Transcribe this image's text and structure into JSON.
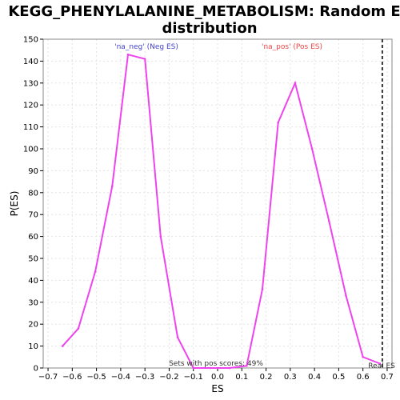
{
  "chart_data": {
    "type": "line",
    "title_lines": [
      "KEGG_PHENYLALANINE_METABOLISM: Random ES",
      "distribution"
    ],
    "xlabel": "ES",
    "ylabel": "P(ES)",
    "xlim": [
      -0.72,
      0.72
    ],
    "ylim": [
      0,
      150
    ],
    "xticks": [
      -0.7,
      -0.6,
      -0.5,
      -0.4,
      -0.3,
      -0.2,
      -0.1,
      0.0,
      0.1,
      0.2,
      0.3,
      0.4,
      0.5,
      0.6,
      0.7
    ],
    "xtick_labels": [
      "−0.7",
      "−0.6",
      "−0.5",
      "−0.4",
      "−0.3",
      "−0.2",
      "−0.1",
      "0.0",
      "0.1",
      "0.2",
      "0.3",
      "0.4",
      "0.5",
      "0.6",
      "0.7"
    ],
    "yticks": [
      0,
      10,
      20,
      30,
      40,
      50,
      60,
      70,
      80,
      90,
      100,
      110,
      120,
      130,
      140,
      150
    ],
    "grid": true,
    "series": [
      {
        "color": "#ee44ee",
        "x": [
          -0.64,
          -0.575,
          -0.505,
          -0.435,
          -0.37,
          -0.3,
          -0.235,
          -0.165,
          -0.1,
          -0.03,
          0.05,
          0.12,
          0.185,
          0.25,
          0.32,
          0.39,
          0.46,
          0.53,
          0.6,
          0.67
        ],
        "y": [
          10,
          18,
          44,
          83,
          143,
          141,
          60,
          14,
          0,
          0,
          0,
          1,
          36,
          112,
          130,
          100,
          67,
          33,
          5,
          2
        ]
      }
    ],
    "real_es": 0.68,
    "real_es_label": "Real ES",
    "annotations": {
      "neg": {
        "text": "'na_neg' (Neg ES)",
        "color": "#4444cc"
      },
      "pos": {
        "text": "'na_pos' (Pos ES)",
        "color": "#ee4444"
      },
      "pos_scores": {
        "text": "Sets with pos scores: 49%",
        "color": "#333333"
      }
    }
  }
}
